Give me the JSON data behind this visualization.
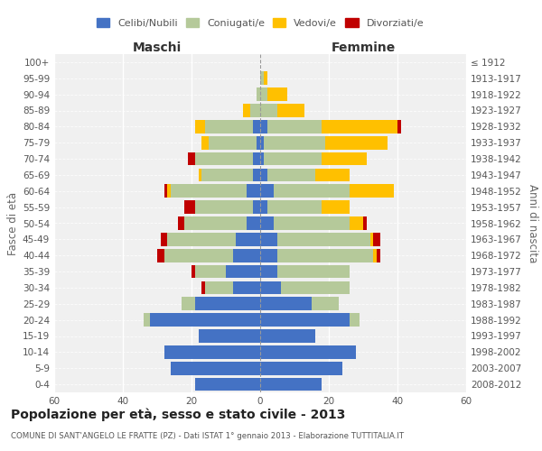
{
  "age_groups": [
    "0-4",
    "5-9",
    "10-14",
    "15-19",
    "20-24",
    "25-29",
    "30-34",
    "35-39",
    "40-44",
    "45-49",
    "50-54",
    "55-59",
    "60-64",
    "65-69",
    "70-74",
    "75-79",
    "80-84",
    "85-89",
    "90-94",
    "95-99",
    "100+"
  ],
  "birth_years": [
    "2008-2012",
    "2003-2007",
    "1998-2002",
    "1993-1997",
    "1988-1992",
    "1983-1987",
    "1978-1982",
    "1973-1977",
    "1968-1972",
    "1963-1967",
    "1958-1962",
    "1953-1957",
    "1948-1952",
    "1943-1947",
    "1938-1942",
    "1933-1937",
    "1928-1932",
    "1923-1927",
    "1918-1922",
    "1913-1917",
    "≤ 1912"
  ],
  "colors": {
    "celibi": "#4472c4",
    "coniugati": "#b5c99a",
    "vedovi": "#ffc000",
    "divorziati": "#c00000"
  },
  "males": {
    "celibi": [
      19,
      26,
      28,
      18,
      32,
      19,
      8,
      10,
      8,
      7,
      4,
      2,
      4,
      2,
      2,
      1,
      2,
      0,
      0,
      0,
      0
    ],
    "coniugati": [
      0,
      0,
      0,
      0,
      2,
      4,
      8,
      9,
      20,
      20,
      18,
      17,
      22,
      15,
      17,
      14,
      14,
      3,
      1,
      0,
      0
    ],
    "vedovi": [
      0,
      0,
      0,
      0,
      0,
      0,
      0,
      0,
      0,
      0,
      0,
      0,
      1,
      1,
      0,
      2,
      3,
      2,
      0,
      0,
      0
    ],
    "divorziati": [
      0,
      0,
      0,
      0,
      0,
      0,
      1,
      1,
      2,
      2,
      2,
      3,
      1,
      0,
      2,
      0,
      0,
      0,
      0,
      0,
      0
    ]
  },
  "females": {
    "celibi": [
      18,
      24,
      28,
      16,
      26,
      15,
      6,
      5,
      5,
      5,
      4,
      2,
      4,
      2,
      1,
      1,
      2,
      0,
      0,
      0,
      0
    ],
    "coniugati": [
      0,
      0,
      0,
      0,
      3,
      8,
      20,
      21,
      28,
      27,
      22,
      16,
      22,
      14,
      17,
      18,
      16,
      5,
      2,
      1,
      0
    ],
    "vedovi": [
      0,
      0,
      0,
      0,
      0,
      0,
      0,
      0,
      1,
      1,
      4,
      8,
      13,
      10,
      13,
      18,
      22,
      8,
      6,
      1,
      0
    ],
    "divorziati": [
      0,
      0,
      0,
      0,
      0,
      0,
      0,
      0,
      1,
      2,
      1,
      0,
      0,
      0,
      0,
      0,
      1,
      0,
      0,
      0,
      0
    ]
  },
  "xlim": 60,
  "title": "Popolazione per età, sesso e stato civile - 2013",
  "subtitle": "COMUNE DI SANT'ANGELO LE FRATTE (PZ) - Dati ISTAT 1° gennaio 2013 - Elaborazione TUTTITALIA.IT",
  "ylabel_left": "Fasce di età",
  "ylabel_right": "Anni di nascita",
  "xlabel_males": "Maschi",
  "xlabel_females": "Femmine",
  "legend_labels": [
    "Celibi/Nubili",
    "Coniugati/e",
    "Vedovi/e",
    "Divorziati/e"
  ],
  "bg_color": "#f0f0f0"
}
